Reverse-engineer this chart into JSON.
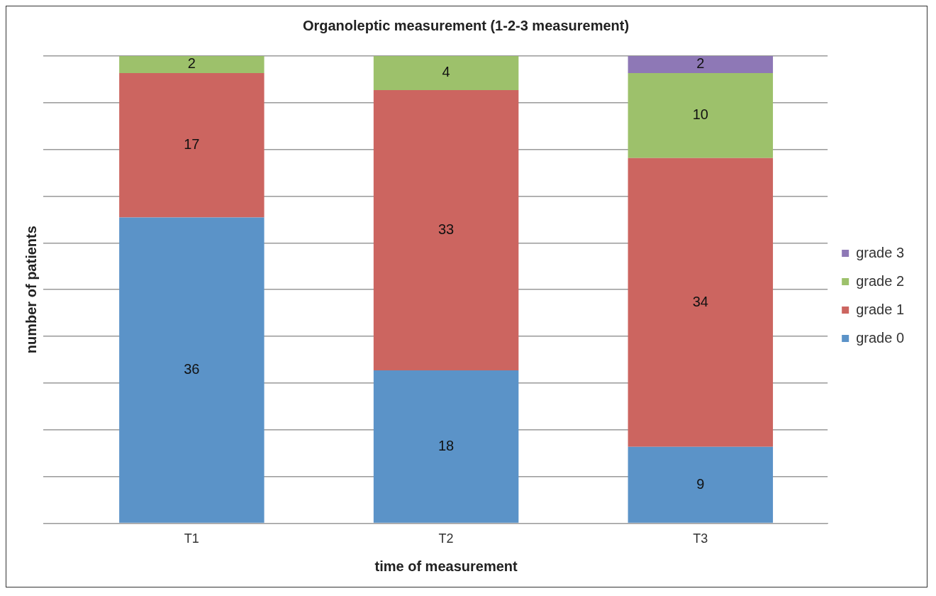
{
  "chart_data": {
    "type": "bar",
    "title": "Organoleptic measurement (1-2-3 measurement)",
    "xlabel": "time of measurement",
    "ylabel": "number of patients",
    "categories": [
      "T1",
      "T2",
      "T3"
    ],
    "stacked": true,
    "data_labels": true,
    "grid": "y",
    "legend": "right",
    "tick_labels": "x",
    "ylim": [
      0,
      55
    ],
    "yticks": [
      {
        "value": 0,
        "label": null
      },
      {
        "value": 5.5,
        "label": null
      },
      {
        "value": 11,
        "label": null
      },
      {
        "value": 16.5,
        "label": null
      },
      {
        "value": 22,
        "label": null
      },
      {
        "value": 27.5,
        "label": null
      },
      {
        "value": 33,
        "label": null
      },
      {
        "value": 38.5,
        "label": null
      },
      {
        "value": 44,
        "label": null
      },
      {
        "value": 49.5,
        "label": null
      },
      {
        "value": 55,
        "label": null
      }
    ],
    "series": [
      {
        "name": "grade 0",
        "color": "#5b93c8",
        "values": [
          36,
          18,
          9
        ]
      },
      {
        "name": "grade 1",
        "color": "#cc6560",
        "values": [
          17,
          33,
          34
        ]
      },
      {
        "name": "grade 2",
        "color": "#9dc16b",
        "values": [
          2,
          4,
          10
        ]
      },
      {
        "name": "grade 3",
        "color": "#8e78b6",
        "values": [
          null,
          null,
          2
        ]
      }
    ]
  }
}
